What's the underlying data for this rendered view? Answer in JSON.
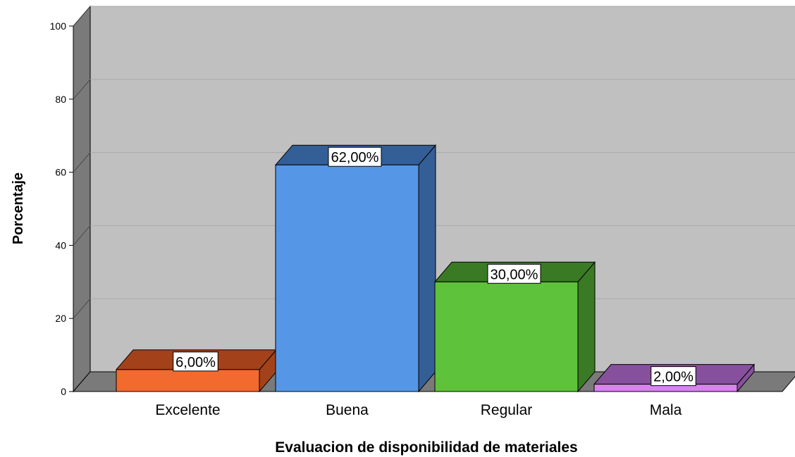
{
  "chart_data": {
    "type": "bar",
    "title": "",
    "xlabel": "Evaluacion de disponibilidad de materiales",
    "ylabel": "Porcentaje",
    "categories": [
      "Excelente",
      "Buena",
      "Regular",
      "Mala"
    ],
    "values": [
      6,
      62,
      30,
      2
    ],
    "data_labels": [
      "6,00%",
      "62,00%",
      "30,00%",
      "2,00%"
    ],
    "ylim": [
      0,
      100
    ],
    "yticks": [
      "0",
      "20",
      "40",
      "60",
      "80",
      "100"
    ],
    "grid": true,
    "colors": [
      {
        "front": "#f26a2e",
        "top": "#a3421a",
        "side": "#a3421a"
      },
      {
        "front": "#5597e6",
        "top": "#345e96",
        "side": "#345e96"
      },
      {
        "front": "#5ec23a",
        "top": "#3a7a24",
        "side": "#3a7a24"
      },
      {
        "front": "#d883ee",
        "top": "#87509c",
        "side": "#87509c"
      }
    ],
    "background": "#c0c0c0"
  }
}
